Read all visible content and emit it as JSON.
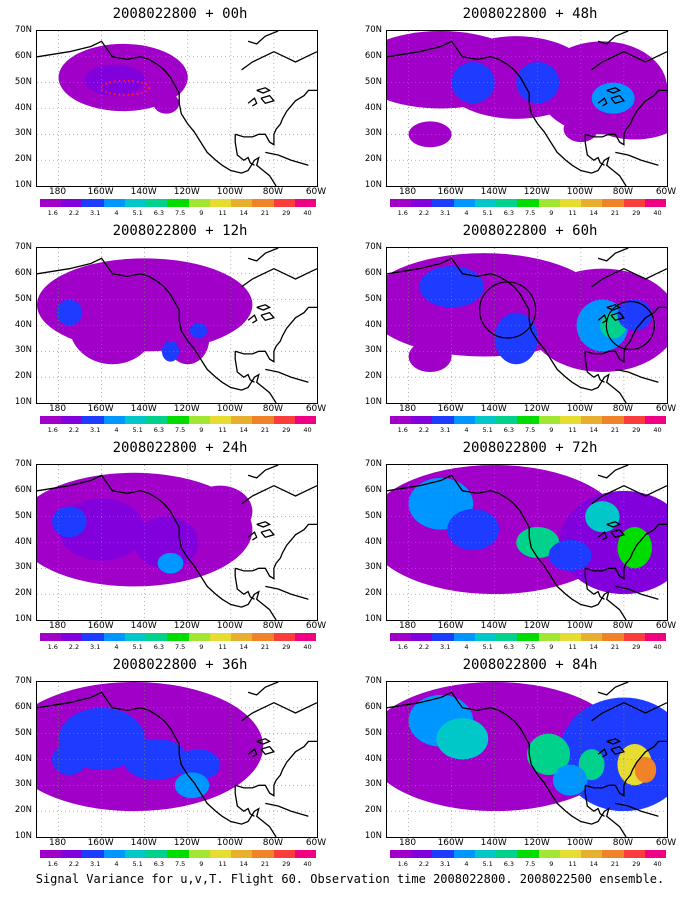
{
  "panels": [
    {
      "title": "2008022800 + 00h",
      "intensity": 0
    },
    {
      "title": "2008022800 + 48h",
      "intensity": 4
    },
    {
      "title": "2008022800 + 12h",
      "intensity": 1
    },
    {
      "title": "2008022800 + 60h",
      "intensity": 5
    },
    {
      "title": "2008022800 + 24h",
      "intensity": 2
    },
    {
      "title": "2008022800 + 72h",
      "intensity": 6
    },
    {
      "title": "2008022800 + 36h",
      "intensity": 3
    },
    {
      "title": "2008022800 + 84h",
      "intensity": 7
    }
  ],
  "y_ticks": [
    "70N",
    "60N",
    "50N",
    "40N",
    "30N",
    "20N",
    "10N"
  ],
  "x_ticks": [
    "180",
    "160W",
    "140W",
    "120W",
    "100W",
    "80W",
    "60W"
  ],
  "colorbar": {
    "labels": [
      "1.6",
      "2.2",
      "3.1",
      "4",
      "5.1",
      "6.3",
      "7.5",
      "9",
      "11",
      "14",
      "21",
      "29",
      "40"
    ],
    "colors": [
      "#a000c8",
      "#8200dc",
      "#1e3cff",
      "#0096ff",
      "#00c8c8",
      "#00d28c",
      "#00dc00",
      "#a0e632",
      "#e6dc32",
      "#e6af2d",
      "#f08228",
      "#fa3c3c",
      "#f00082"
    ]
  },
  "caption": "Signal Variance for u,v,T. Flight 60. Observation time 2008022800. 2008022500 ensemble."
}
